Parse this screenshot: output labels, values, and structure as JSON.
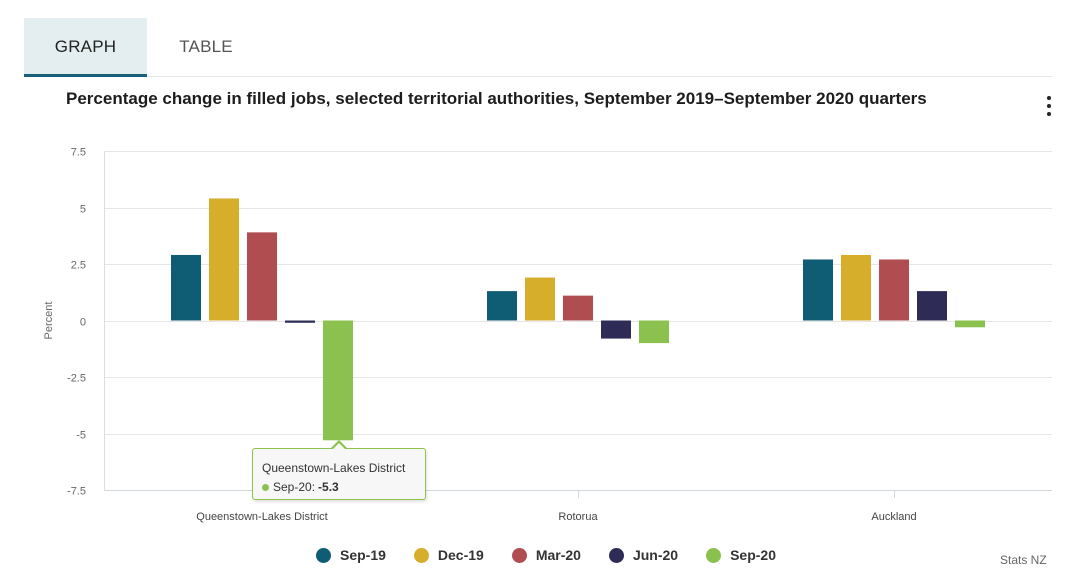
{
  "tabs": [
    {
      "label": "GRAPH",
      "active": true
    },
    {
      "label": "TABLE",
      "active": false
    }
  ],
  "menu_icon": "kebab-menu-icon",
  "chart_data": {
    "type": "bar",
    "title": "Percentage change in filled jobs, selected territorial authorities, September 2019–September 2020 quarters",
    "xlabel": "",
    "ylabel": "Percent",
    "ylim": [
      -7.5,
      7.5
    ],
    "yticks": [
      7.5,
      5,
      2.5,
      0,
      -2.5,
      -5,
      -7.5
    ],
    "ytick_labels": [
      "7.5",
      "5",
      "2.5",
      "0",
      "-2.5",
      "-5",
      "-7.5"
    ],
    "grid": true,
    "legend_position": "bottom",
    "categories": [
      "Queenstown-Lakes District",
      "Rotorua",
      "Auckland"
    ],
    "series": [
      {
        "name": "Sep-19",
        "color": "#0e5d74",
        "values": [
          2.9,
          1.3,
          2.7
        ]
      },
      {
        "name": "Dec-19",
        "color": "#d7ae2c",
        "values": [
          5.4,
          1.9,
          2.9
        ]
      },
      {
        "name": "Mar-20",
        "color": "#b04d51",
        "values": [
          3.9,
          1.1,
          2.7
        ]
      },
      {
        "name": "Jun-20",
        "color": "#2e2c57",
        "values": [
          -0.1,
          -0.8,
          1.3
        ]
      },
      {
        "name": "Sep-20",
        "color": "#8bc24f",
        "values": [
          -5.3,
          -1.0,
          -0.3
        ]
      }
    ],
    "tooltip": {
      "category": "Queenstown-Lakes District",
      "series": "Sep-20",
      "series_label": "Sep-20:",
      "value": "-5.3"
    },
    "credits": "Stats NZ"
  }
}
